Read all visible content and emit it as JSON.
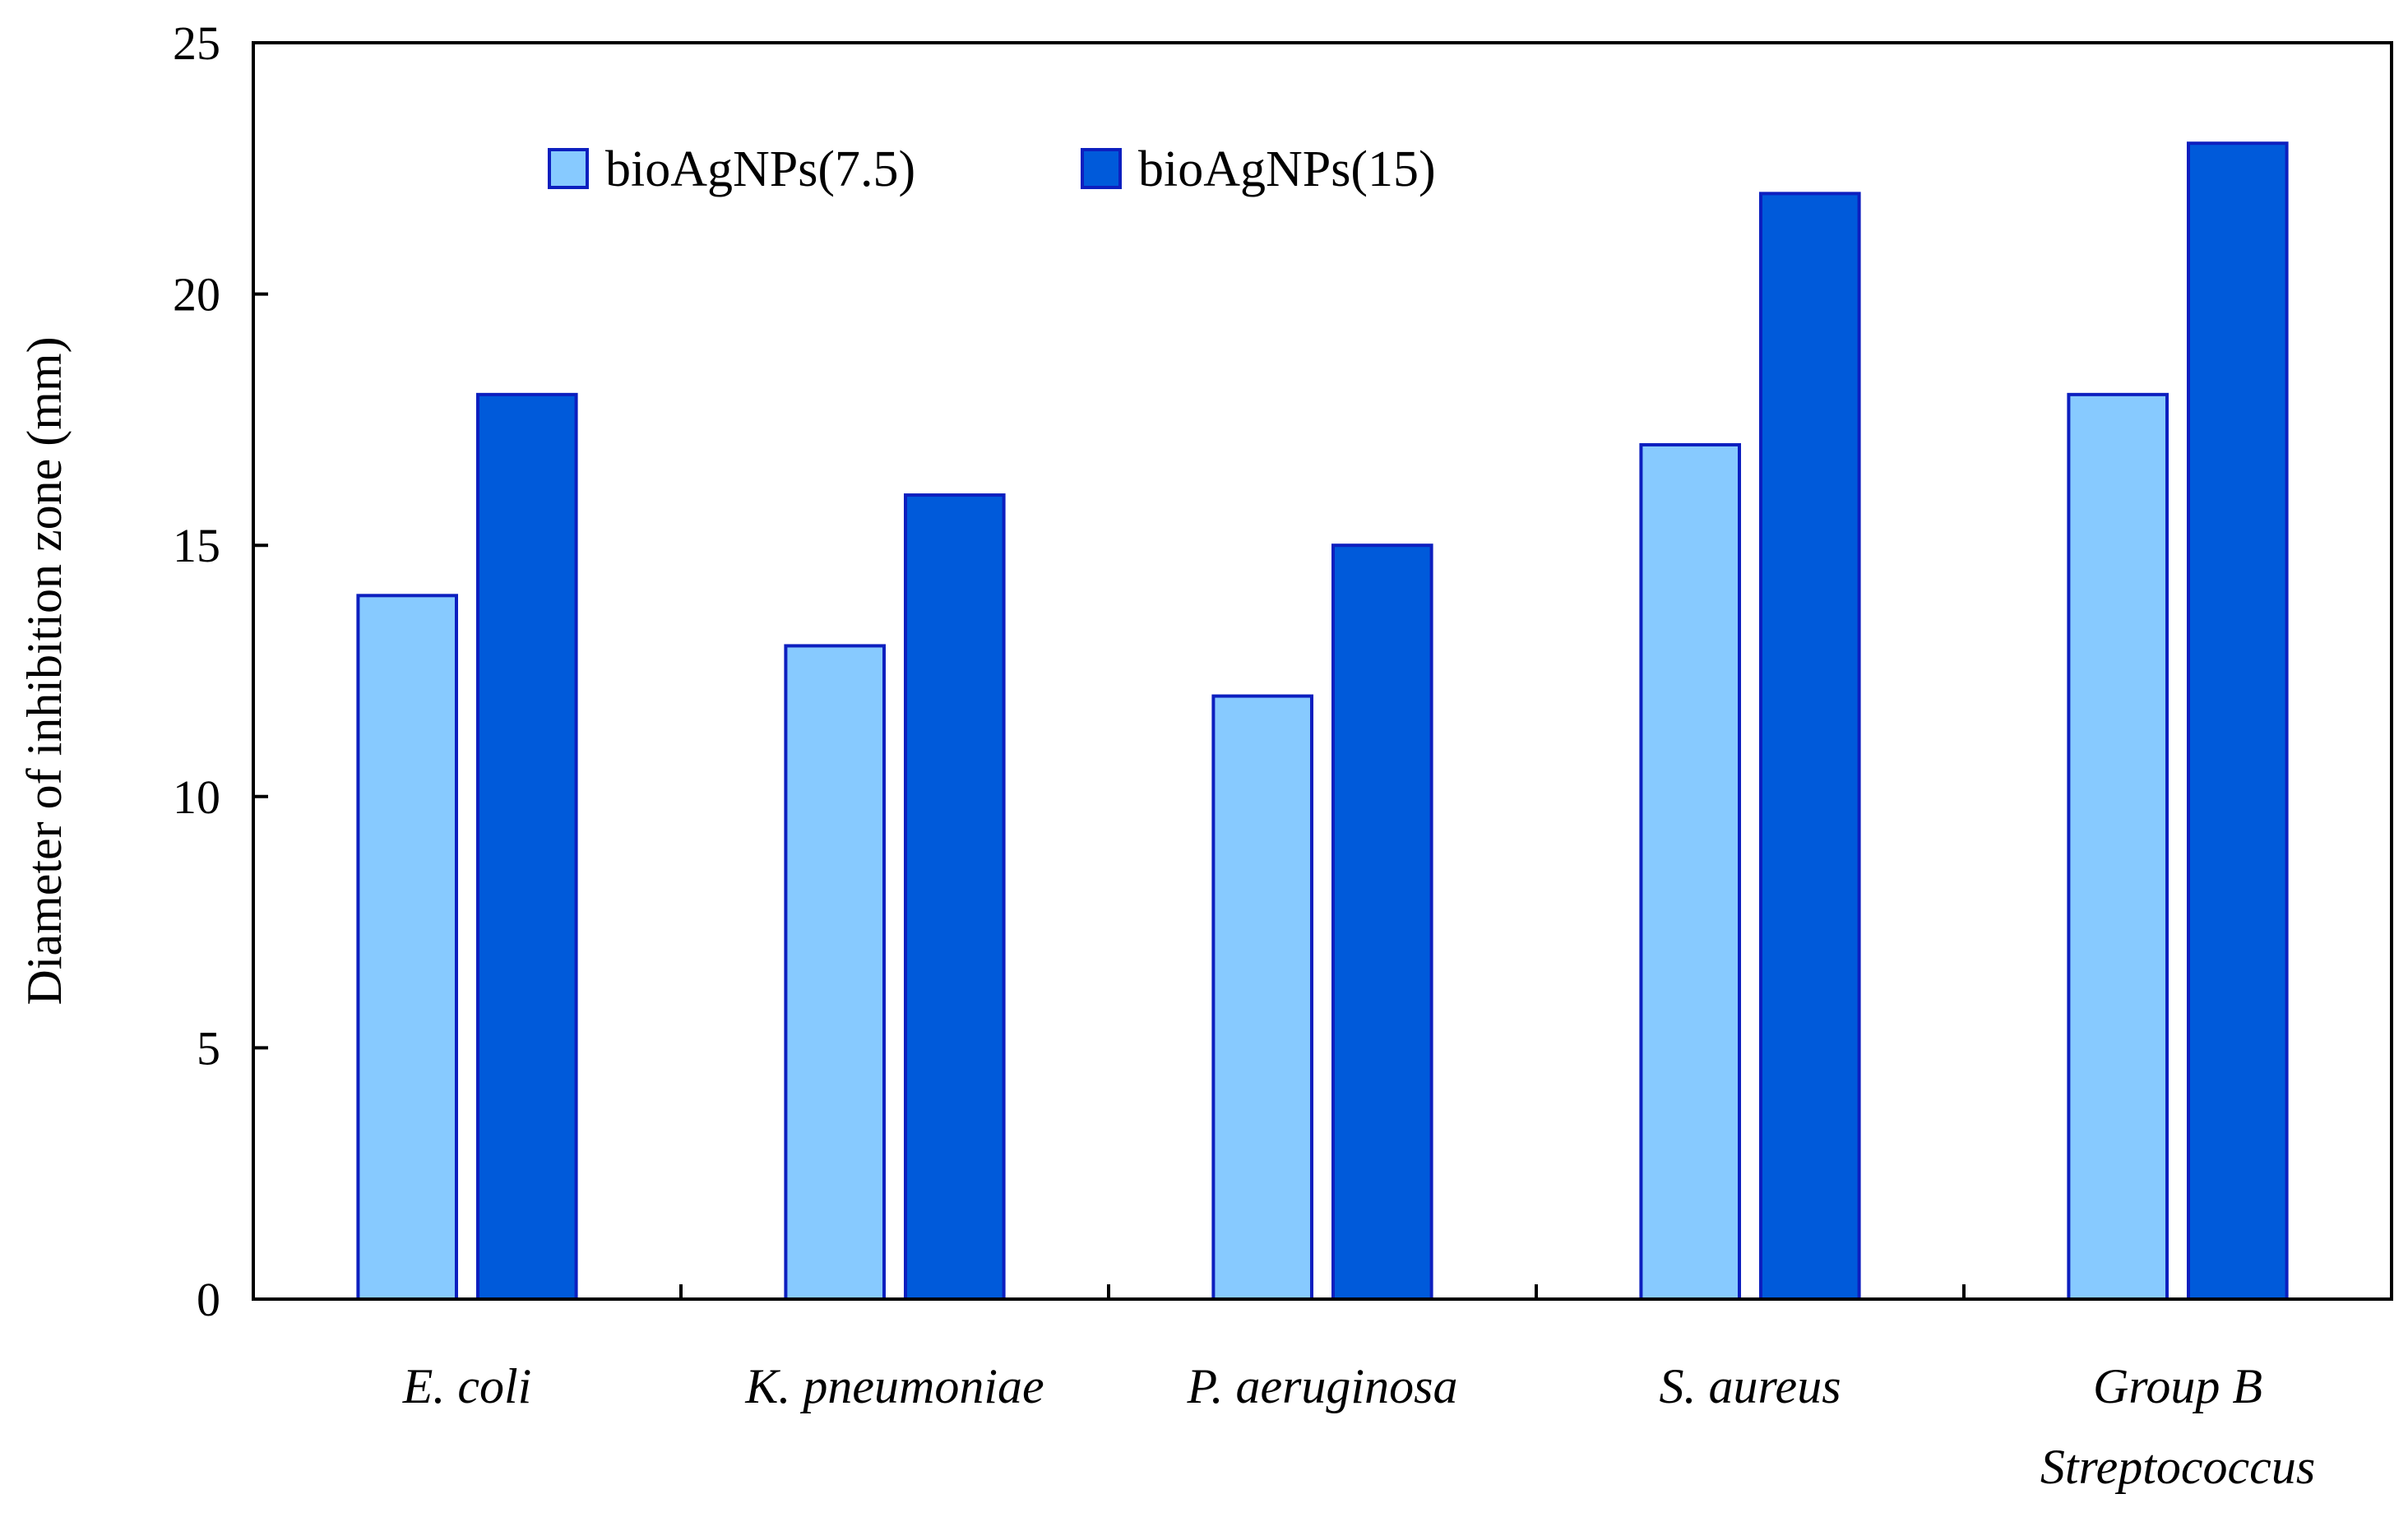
{
  "chart_data": {
    "type": "bar",
    "title": "",
    "xlabel": "",
    "ylabel": "Diameter of inhibition zone (mm)",
    "ylim": [
      0,
      25
    ],
    "yticks": [
      "0",
      "5",
      "10",
      "15",
      "20",
      "25"
    ],
    "categories": [
      [
        "E. coli"
      ],
      [
        "K. pneumoniae"
      ],
      [
        "P. aeruginosa"
      ],
      [
        "S. aureus"
      ],
      [
        "Group B",
        "Streptococcus"
      ]
    ],
    "series": [
      {
        "name": "bioAgNPs(7.5)",
        "color": "#87CAFF",
        "values": [
          14,
          13,
          12,
          17,
          18
        ]
      },
      {
        "name": "bioAgNPs(15)",
        "color": "#005ADA",
        "values": [
          18,
          16,
          15,
          22,
          23
        ]
      }
    ],
    "bar_outline_color": "#0D1FBF",
    "grid": false,
    "legend_position": "top-left inside plot, horizontal"
  }
}
